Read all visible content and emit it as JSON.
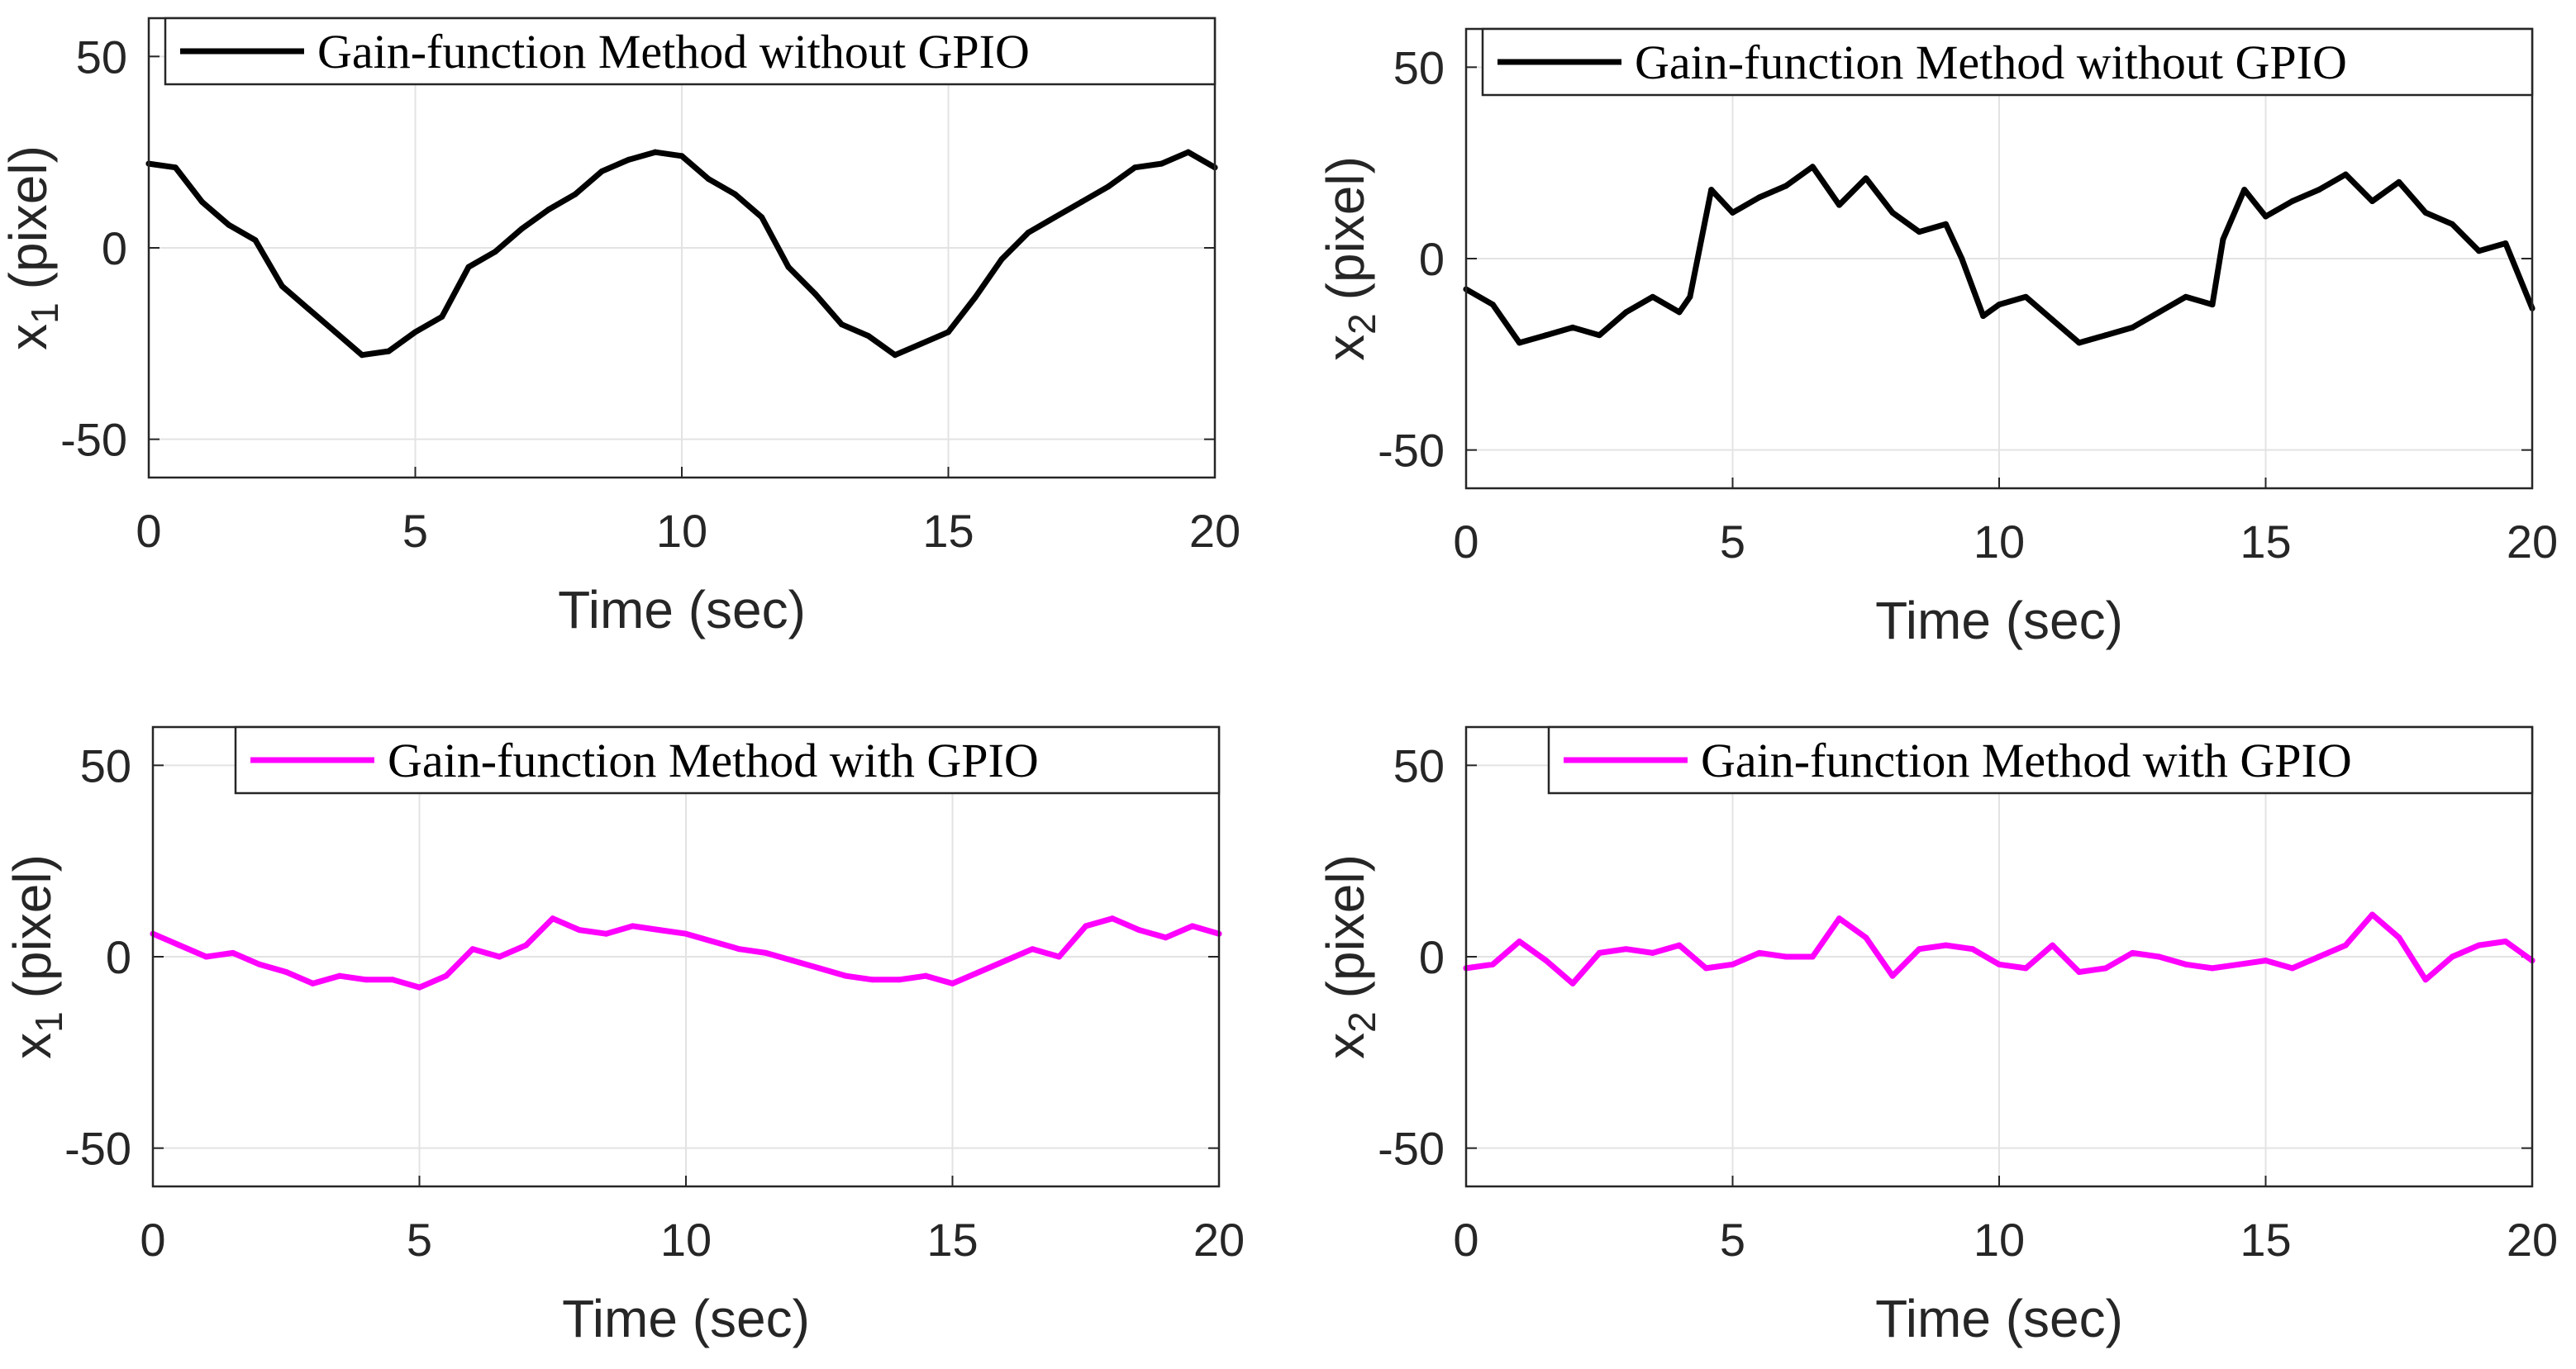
{
  "colors": {
    "without_gpio": "#000000",
    "with_gpio": "#ff00ff",
    "grid": "#e3e3e3",
    "axis": "#262626",
    "background": "#ffffff"
  },
  "chart_data": [
    {
      "type": "line",
      "title": "",
      "xlabel": "Time (sec)",
      "ylabel_main": "x",
      "ylabel_sub": "1",
      "ylabel_unit": "(pixel)",
      "xlim": [
        0,
        20
      ],
      "ylim": [
        -60,
        60
      ],
      "xticks": [
        0,
        5,
        10,
        15,
        20
      ],
      "yticks": [
        -50,
        0,
        50
      ],
      "xtick_labels": [
        "0",
        "5",
        "10",
        "15",
        "20"
      ],
      "ytick_labels": [
        "-50",
        "0",
        "50"
      ],
      "grid": true,
      "legend_position": "top-right",
      "series": [
        {
          "name": "Gain-function Method without GPIO",
          "color": "#000000",
          "x": [
            0,
            0.5,
            1,
            1.5,
            2,
            2.5,
            3,
            3.5,
            4,
            4.5,
            5,
            5.5,
            6,
            6.5,
            7,
            7.5,
            8,
            8.5,
            9,
            9.5,
            10,
            10.5,
            11,
            11.5,
            12,
            12.5,
            13,
            13.5,
            14,
            14.5,
            15,
            15.5,
            16,
            16.5,
            17,
            17.5,
            18,
            18.5,
            19,
            19.5,
            20
          ],
          "values": [
            22,
            21,
            12,
            6,
            2,
            -10,
            -16,
            -22,
            -28,
            -27,
            -22,
            -18,
            -5,
            -1,
            5,
            10,
            14,
            20,
            23,
            25,
            24,
            18,
            14,
            8,
            -5,
            -12,
            -20,
            -23,
            -28,
            -25,
            -22,
            -13,
            -3,
            4,
            8,
            12,
            16,
            21,
            22,
            25,
            21
          ]
        }
      ]
    },
    {
      "type": "line",
      "title": "",
      "xlabel": "Time (sec)",
      "ylabel_main": "x",
      "ylabel_sub": "2",
      "ylabel_unit": "(pixel)",
      "xlim": [
        0,
        20
      ],
      "ylim": [
        -60,
        60
      ],
      "xticks": [
        0,
        5,
        10,
        15,
        20
      ],
      "yticks": [
        -50,
        0,
        50
      ],
      "xtick_labels": [
        "0",
        "5",
        "10",
        "15",
        "20"
      ],
      "ytick_labels": [
        "-50",
        "0",
        "50"
      ],
      "grid": true,
      "legend_position": "top-right",
      "series": [
        {
          "name": "Gain-function Method without GPIO",
          "color": "#000000",
          "x": [
            0,
            0.5,
            1,
            1.5,
            2,
            2.5,
            3,
            3.5,
            4,
            4.2,
            4.6,
            5,
            5.5,
            6,
            6.5,
            7,
            7.5,
            8,
            8.5,
            9,
            9.3,
            9.7,
            10,
            10.5,
            11,
            11.5,
            12,
            12.5,
            13,
            13.5,
            14,
            14.2,
            14.6,
            15,
            15.5,
            16,
            16.5,
            17,
            17.5,
            18,
            18.5,
            19,
            19.5,
            20
          ],
          "values": [
            -8,
            -12,
            -22,
            -20,
            -18,
            -20,
            -14,
            -10,
            -14,
            -10,
            18,
            12,
            16,
            19,
            24,
            14,
            21,
            12,
            7,
            9,
            0,
            -15,
            -12,
            -10,
            -16,
            -22,
            -20,
            -18,
            -14,
            -10,
            -12,
            5,
            18,
            11,
            15,
            18,
            22,
            15,
            20,
            12,
            9,
            2,
            4,
            -13
          ]
        }
      ]
    },
    {
      "type": "line",
      "title": "",
      "xlabel": "Time (sec)",
      "ylabel_main": "x",
      "ylabel_sub": "1",
      "ylabel_unit": "(pixel)",
      "xlim": [
        0,
        20
      ],
      "ylim": [
        -60,
        60
      ],
      "xticks": [
        0,
        5,
        10,
        15,
        20
      ],
      "yticks": [
        -50,
        0,
        50
      ],
      "xtick_labels": [
        "0",
        "5",
        "10",
        "15",
        "20"
      ],
      "ytick_labels": [
        "-50",
        "0",
        "50"
      ],
      "grid": true,
      "legend_position": "top-right",
      "series": [
        {
          "name": "Gain-function Method with GPIO",
          "color": "#ff00ff",
          "x": [
            0,
            0.5,
            1,
            1.5,
            2,
            2.5,
            3,
            3.5,
            4,
            4.5,
            5,
            5.5,
            6,
            6.5,
            7,
            7.5,
            8,
            8.5,
            9,
            9.5,
            10,
            10.5,
            11,
            11.5,
            12,
            12.5,
            13,
            13.5,
            14,
            14.5,
            15,
            15.5,
            16,
            16.5,
            17,
            17.5,
            18,
            18.5,
            19,
            19.5,
            20
          ],
          "values": [
            6,
            3,
            0,
            1,
            -2,
            -4,
            -7,
            -5,
            -6,
            -6,
            -8,
            -5,
            2,
            0,
            3,
            10,
            7,
            6,
            8,
            7,
            6,
            4,
            2,
            1,
            -1,
            -3,
            -5,
            -6,
            -6,
            -5,
            -7,
            -4,
            -1,
            2,
            0,
            8,
            10,
            7,
            5,
            8,
            6
          ]
        }
      ]
    },
    {
      "type": "line",
      "title": "",
      "xlabel": "Time (sec)",
      "ylabel_main": "x",
      "ylabel_sub": "2",
      "ylabel_unit": "(pixel)",
      "xlim": [
        0,
        20
      ],
      "ylim": [
        -60,
        60
      ],
      "xticks": [
        0,
        5,
        10,
        15,
        20
      ],
      "yticks": [
        -50,
        0,
        50
      ],
      "xtick_labels": [
        "0",
        "5",
        "10",
        "15",
        "20"
      ],
      "ytick_labels": [
        "-50",
        "0",
        "50"
      ],
      "grid": true,
      "legend_position": "top-right",
      "series": [
        {
          "name": "Gain-function Method with GPIO",
          "color": "#ff00ff",
          "x": [
            0,
            0.5,
            1,
            1.5,
            2,
            2.5,
            3,
            3.5,
            4,
            4.5,
            5,
            5.5,
            6,
            6.5,
            7,
            7.5,
            8,
            8.5,
            9,
            9.5,
            10,
            10.5,
            11,
            11.5,
            12,
            12.5,
            13,
            13.5,
            14,
            14.5,
            15,
            15.5,
            16,
            16.5,
            17,
            17.5,
            18,
            18.5,
            19,
            19.5,
            20
          ],
          "values": [
            -3,
            -2,
            4,
            -1,
            -7,
            1,
            2,
            1,
            3,
            -3,
            -2,
            1,
            0,
            0,
            10,
            5,
            -5,
            2,
            3,
            2,
            -2,
            -3,
            3,
            -4,
            -3,
            1,
            0,
            -2,
            -3,
            -2,
            -1,
            -3,
            0,
            3,
            11,
            5,
            -6,
            0,
            3,
            4,
            -1
          ]
        }
      ]
    }
  ]
}
